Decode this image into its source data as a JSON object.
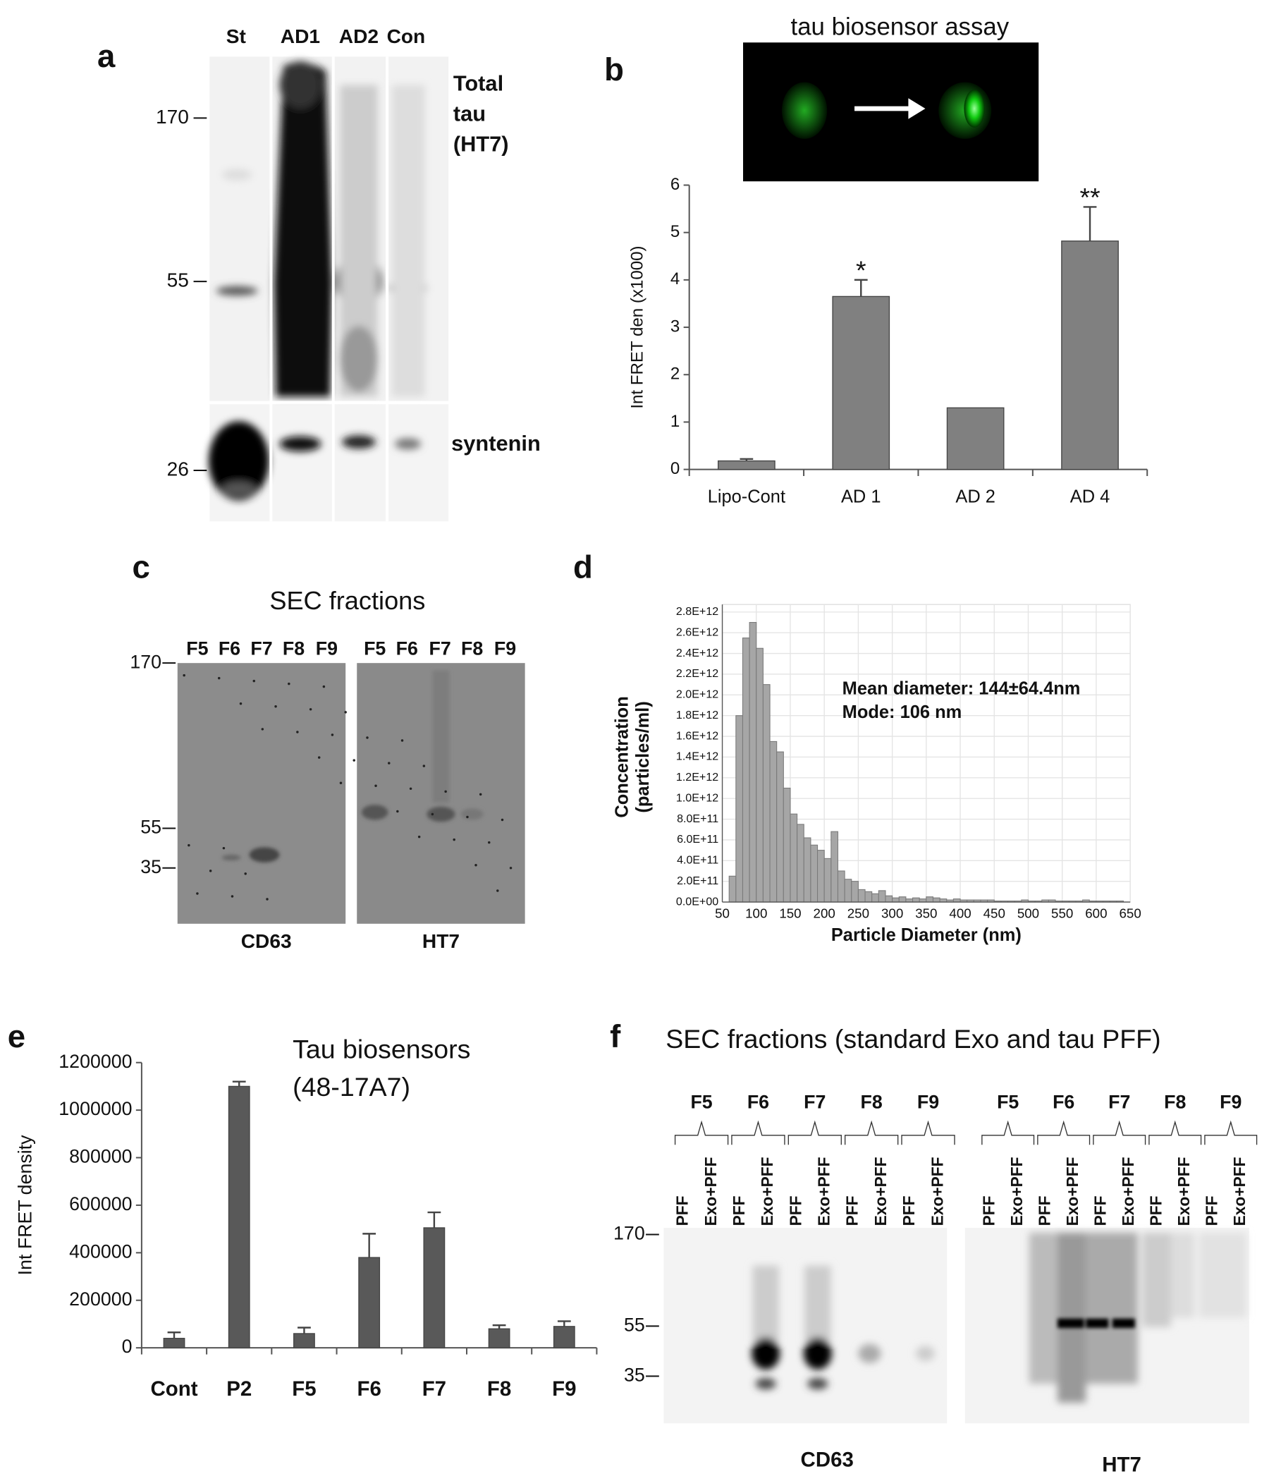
{
  "panel_labels": [
    "a",
    "b",
    "c",
    "d",
    "e",
    "f"
  ],
  "blot_a": {
    "lanes": [
      "St",
      "AD1",
      "AD2",
      "Con"
    ],
    "markers": [
      "170",
      "55",
      "26"
    ],
    "label_lines": [
      "Total",
      "tau",
      "(HT7)"
    ],
    "lower_label": "syntenin"
  },
  "image_b": {
    "title": "tau biosensor assay"
  },
  "blot_c": {
    "title": "SEC fractions",
    "lanes": [
      "F5",
      "F6",
      "F7",
      "F8",
      "F9"
    ],
    "markers": [
      "170",
      "55",
      "35"
    ],
    "blots": [
      "CD63",
      "HT7"
    ]
  },
  "blot_f": {
    "title": "SEC fractions  (standard Exo and tau PFF)",
    "fractions": [
      "F5",
      "F6",
      "F7",
      "F8",
      "F9"
    ],
    "conditions": [
      "PFF",
      "Exo+PFF"
    ],
    "markers": [
      "170",
      "55",
      "35"
    ],
    "blots": [
      "CD63",
      "HT7"
    ]
  },
  "chart_data": [
    {
      "type": "bar",
      "y_label": "Int FRET den (x1000)",
      "categories": [
        "Lipo-Cont",
        "AD 1",
        "AD 2",
        "AD 4"
      ],
      "values": [
        0.18,
        3.65,
        1.3,
        4.82
      ],
      "errors": [
        0.04,
        0.35,
        null,
        0.72
      ],
      "annotations": [
        null,
        "*",
        null,
        "**"
      ],
      "color": "#808080",
      "ylim": [
        0,
        6
      ],
      "yticks": [
        0,
        1,
        2,
        3,
        4,
        5,
        6
      ]
    },
    {
      "type": "histogram",
      "y_label": [
        "Concentration",
        "(particles/ml)"
      ],
      "x_label": "Particle Diameter (nm)",
      "annotations": [
        "Mean diameter: 144±64.4nm",
        "Mode: 106 nm"
      ],
      "color": "#a6a6a6",
      "grid": true,
      "bins": [
        60,
        70,
        80,
        90,
        100,
        110,
        120,
        130,
        140,
        150,
        160,
        170,
        180,
        190,
        200,
        210,
        220,
        230,
        240,
        250,
        260,
        270,
        280,
        290,
        300,
        310,
        320,
        330,
        340,
        350,
        360,
        370,
        380,
        390,
        400,
        410,
        420,
        430,
        440,
        450,
        460,
        470,
        480,
        490,
        500,
        510,
        520,
        530,
        540,
        550,
        560,
        570,
        580,
        590,
        600,
        610,
        620,
        630,
        640
      ],
      "values": [
        250000000000.0,
        1800000000000.0,
        2550000000000.0,
        2700000000000.0,
        2450000000000.0,
        2100000000000.0,
        1550000000000.0,
        1450000000000.0,
        1100000000000.0,
        850000000000.0,
        750000000000.0,
        620000000000.0,
        550000000000.0,
        500000000000.0,
        420000000000.0,
        680000000000.0,
        300000000000.0,
        220000000000.0,
        200000000000.0,
        120000000000.0,
        100000000000.0,
        80000000000.0,
        110000000000.0,
        60000000000.0,
        40000000000.0,
        50000000000.0,
        30000000000.0,
        40000000000.0,
        30000000000.0,
        50000000000.0,
        40000000000.0,
        30000000000.0,
        20000000000.0,
        30000000000.0,
        20000000000.0,
        20000000000.0,
        20000000000.0,
        20000000000.0,
        20000000000.0,
        10000000000.0,
        10000000000.0,
        10000000000.0,
        10000000000.0,
        20000000000.0,
        10000000000.0,
        10000000000.0,
        20000000000.0,
        20000000000.0,
        10000000000.0,
        10000000000.0,
        10000000000.0,
        10000000000.0,
        20000000000.0,
        10000000000.0,
        10000000000.0,
        10000000000.0,
        10000000000.0,
        10000000000.0
      ],
      "xlim": [
        50,
        650
      ],
      "xticks": [
        50,
        100,
        150,
        200,
        250,
        300,
        350,
        400,
        450,
        500,
        550,
        600,
        650
      ],
      "ylim": [
        0,
        2800000000000.0
      ],
      "yticks": [
        {
          "value": 0,
          "label": "0.0E+00"
        },
        {
          "value": 200000000000.0,
          "label": "2.0E+11"
        },
        {
          "value": 400000000000.0,
          "label": "4.0E+11"
        },
        {
          "value": 600000000000.0,
          "label": "6.0E+11"
        },
        {
          "value": 800000000000.0,
          "label": "8.0E+11"
        },
        {
          "value": 1000000000000.0,
          "label": "1.0E+12"
        },
        {
          "value": 1200000000000.0,
          "label": "1.2E+12"
        },
        {
          "value": 1400000000000.0,
          "label": "1.4E+12"
        },
        {
          "value": 1600000000000.0,
          "label": "1.6E+12"
        },
        {
          "value": 1800000000000.0,
          "label": "1.8E+12"
        },
        {
          "value": 2000000000000.0,
          "label": "2.0E+12"
        },
        {
          "value": 2200000000000.0,
          "label": "2.2E+12"
        },
        {
          "value": 2400000000000.0,
          "label": "2.4E+12"
        },
        {
          "value": 2600000000000.0,
          "label": "2.6E+12"
        },
        {
          "value": 2800000000000.0,
          "label": "2.8E+12"
        }
      ]
    },
    {
      "type": "bar",
      "title_lines": [
        "Tau biosensors",
        "(48-17A7)"
      ],
      "y_label": "Int FRET density",
      "categories": [
        "Cont",
        "P2",
        "F5",
        "F6",
        "F7",
        "F8",
        "F9"
      ],
      "values": [
        40000,
        1100000,
        60000,
        380000,
        505000,
        80000,
        90000
      ],
      "errors": [
        25000,
        20000,
        25000,
        100000,
        65000,
        15000,
        22000
      ],
      "color": "#595959",
      "ylim": [
        0,
        1200000
      ],
      "yticks": [
        0,
        200000,
        400000,
        600000,
        800000,
        1000000,
        1200000
      ]
    }
  ]
}
